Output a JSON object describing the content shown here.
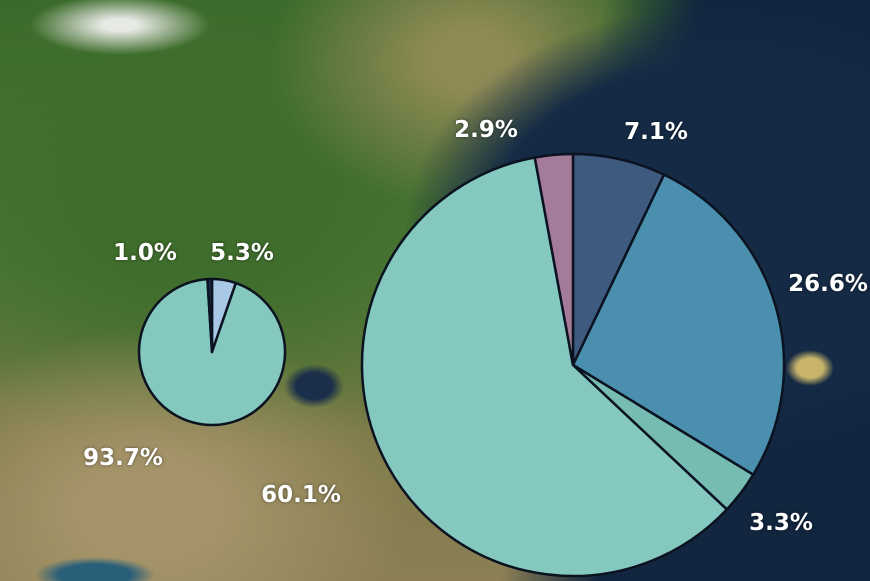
{
  "chart_data": [
    {
      "type": "pie",
      "name": "small-pie",
      "start": "top, clockwise",
      "slices": [
        {
          "label": "5.3%",
          "value": 5.3,
          "color": "#a9c8e6"
        },
        {
          "label": "93.7%",
          "value": 93.7,
          "color": "#84c8bf"
        },
        {
          "label": "1.0%",
          "value": 1.0,
          "color": "#1b2a48"
        }
      ]
    },
    {
      "type": "pie",
      "name": "large-pie",
      "start": "top, clockwise",
      "slices": [
        {
          "label": "7.1%",
          "value": 7.1,
          "color": "#3e5a7e"
        },
        {
          "label": "26.6%",
          "value": 26.6,
          "color": "#4b8fae"
        },
        {
          "label": "3.3%",
          "value": 3.3,
          "color": "#76bcb3"
        },
        {
          "label": "60.1%",
          "value": 60.1,
          "color": "#84c8bf"
        },
        {
          "label": "2.9%",
          "value": 2.9,
          "color": "#a57b9a"
        }
      ]
    }
  ]
}
